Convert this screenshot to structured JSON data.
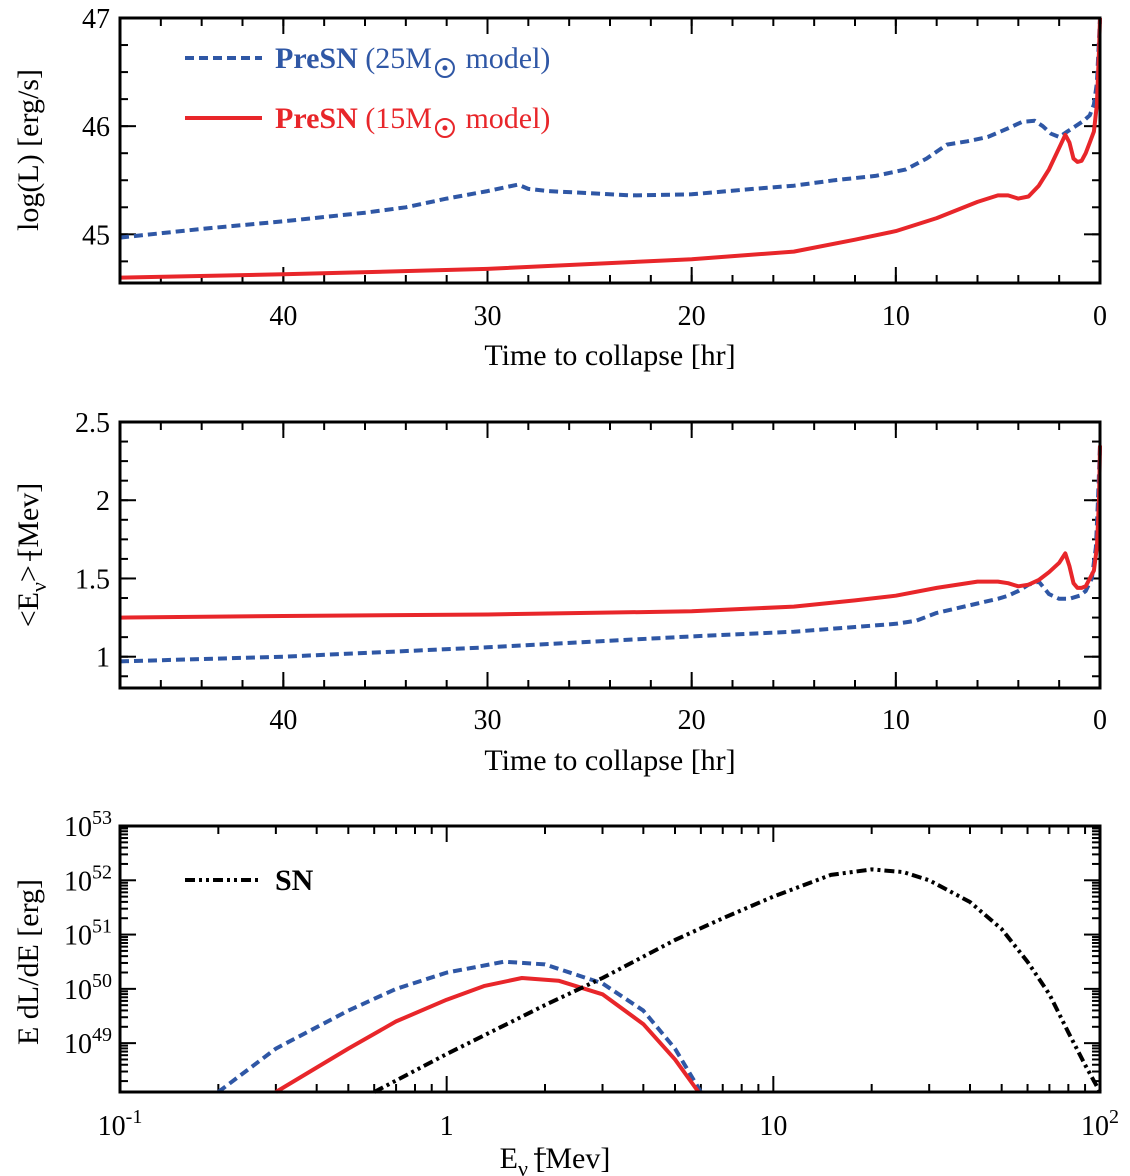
{
  "colors": {
    "blue": "#2f57a5",
    "red": "#e8262a",
    "black": "#000000"
  },
  "chart_data": [
    {
      "type": "line",
      "ylabel": "log(L) [erg/s]",
      "xlabel": "Time to collapse [hr]",
      "xlim": [
        48,
        0
      ],
      "ylim": [
        44.55,
        47
      ],
      "x_ticks": [
        40,
        30,
        20,
        10,
        0
      ],
      "y_ticks": [
        45,
        46,
        47
      ],
      "x_minor_step": 2,
      "y_minor_step": 0.25,
      "legend": {
        "placement": "top-left",
        "entries": [
          {
            "bold": "PreSN",
            "rest_a": " (25M",
            "rest_b": " model)",
            "series": 0
          },
          {
            "bold": "PreSN",
            "rest_a": " (15M",
            "rest_b": " model)",
            "series": 1
          }
        ]
      },
      "series": [
        {
          "color": "blue",
          "style": "dashed",
          "x": [
            48,
            44,
            40,
            36,
            34,
            32,
            30,
            29,
            28.5,
            28,
            27,
            25,
            23,
            20,
            17,
            15,
            13,
            11,
            9.5,
            8.5,
            7.5,
            6.5,
            5.5,
            4.5,
            3.8,
            3.2,
            2.8,
            2.4,
            2.0,
            1.6,
            1.2,
            0.8,
            0.5,
            0.3,
            0.15,
            0.05,
            0
          ],
          "y": [
            44.97,
            45.05,
            45.12,
            45.2,
            45.25,
            45.33,
            45.4,
            45.44,
            45.46,
            45.42,
            45.4,
            45.38,
            45.36,
            45.37,
            45.42,
            45.45,
            45.5,
            45.54,
            45.6,
            45.7,
            45.83,
            45.86,
            45.9,
            45.98,
            46.04,
            46.05,
            46.0,
            45.93,
            45.9,
            45.95,
            46.0,
            46.05,
            46.1,
            46.2,
            46.4,
            46.8,
            47.0
          ]
        },
        {
          "color": "red",
          "style": "solid",
          "x": [
            48,
            40,
            30,
            20,
            15,
            12,
            10,
            8,
            6,
            5,
            4.5,
            4,
            3.5,
            3,
            2.5,
            2,
            1.7,
            1.5,
            1.3,
            1.1,
            0.9,
            0.7,
            0.5,
            0.3,
            0.15,
            0.05,
            0
          ],
          "y": [
            44.6,
            44.63,
            44.68,
            44.77,
            44.84,
            44.95,
            45.03,
            45.15,
            45.3,
            45.36,
            45.36,
            45.33,
            45.35,
            45.45,
            45.6,
            45.8,
            45.92,
            45.85,
            45.7,
            45.67,
            45.68,
            45.75,
            45.85,
            45.95,
            46.2,
            46.7,
            47.0
          ]
        }
      ]
    },
    {
      "type": "line",
      "ylabel_parts": [
        "<E",
        "ν",
        "> [Mev]"
      ],
      "xlabel": "Time to collapse [hr]",
      "xlim": [
        48,
        0
      ],
      "ylim": [
        0.8,
        2.5
      ],
      "x_ticks": [
        40,
        30,
        20,
        10,
        0
      ],
      "y_ticks": [
        1,
        1.5,
        2,
        2.5
      ],
      "x_minor_step": 2,
      "y_minor_step": 0.125,
      "series": [
        {
          "color": "blue",
          "style": "dashed",
          "x": [
            48,
            40,
            30,
            20,
            15,
            12,
            10,
            9,
            8,
            7,
            6,
            5,
            4.5,
            4,
            3.5,
            3,
            2.5,
            2,
            1.5,
            1,
            0.7,
            0.4,
            0.2,
            0.1,
            0
          ],
          "y": [
            0.97,
            1.0,
            1.06,
            1.13,
            1.16,
            1.19,
            1.21,
            1.23,
            1.28,
            1.31,
            1.34,
            1.37,
            1.39,
            1.42,
            1.46,
            1.48,
            1.4,
            1.37,
            1.37,
            1.39,
            1.42,
            1.5,
            1.7,
            2.0,
            2.35
          ]
        },
        {
          "color": "red",
          "style": "solid",
          "x": [
            48,
            40,
            30,
            20,
            15,
            12,
            10,
            8,
            6,
            5,
            4.5,
            4,
            3.5,
            3,
            2.5,
            2,
            1.7,
            1.5,
            1.3,
            1.1,
            0.9,
            0.7,
            0.5,
            0.3,
            0.15,
            0.05,
            0
          ],
          "y": [
            1.25,
            1.26,
            1.27,
            1.29,
            1.32,
            1.36,
            1.39,
            1.44,
            1.48,
            1.48,
            1.47,
            1.45,
            1.46,
            1.49,
            1.54,
            1.6,
            1.66,
            1.58,
            1.47,
            1.44,
            1.44,
            1.45,
            1.5,
            1.55,
            1.7,
            2.0,
            2.35
          ]
        }
      ]
    },
    {
      "type": "line",
      "ylabel": "E dL/dE [erg]",
      "xlabel_parts": [
        "E",
        "ν",
        "  [Mev]"
      ],
      "x_scale": "log",
      "y_scale": "log",
      "xlim": [
        0.1,
        100
      ],
      "ylim_log10": [
        48.1,
        53
      ],
      "x_ticks": [
        {
          "value": 0.1,
          "base": "10",
          "exp": "-1"
        },
        {
          "value": 1,
          "label": "1"
        },
        {
          "value": 10,
          "label": "10"
        },
        {
          "value": 100,
          "base": "10",
          "exp": "2"
        }
      ],
      "y_ticks": [
        {
          "value_log10": 49,
          "base": "10",
          "exp": "49"
        },
        {
          "value_log10": 50,
          "base": "10",
          "exp": "50"
        },
        {
          "value_log10": 51,
          "base": "10",
          "exp": "51"
        },
        {
          "value_log10": 52,
          "base": "10",
          "exp": "52"
        },
        {
          "value_log10": 53,
          "base": "10",
          "exp": "53"
        }
      ],
      "legend": {
        "placement": "top-left",
        "entries": [
          {
            "bold": "SN",
            "series": 2
          }
        ]
      },
      "series": [
        {
          "color": "blue",
          "style": "dashed",
          "x": [
            0.2,
            0.3,
            0.5,
            0.7,
            1.0,
            1.5,
            2.0,
            3.0,
            4.0,
            5.0,
            6.0
          ],
          "y_log10": [
            48.1,
            48.9,
            49.6,
            50.0,
            50.3,
            50.5,
            50.45,
            50.1,
            49.6,
            48.9,
            48.1
          ]
        },
        {
          "color": "red",
          "style": "solid",
          "x": [
            0.3,
            0.5,
            0.7,
            1.0,
            1.3,
            1.7,
            2.2,
            3.0,
            4.0,
            5.0,
            5.9
          ],
          "y_log10": [
            48.1,
            48.9,
            49.4,
            49.8,
            50.05,
            50.2,
            50.15,
            49.9,
            49.35,
            48.7,
            48.1
          ]
        },
        {
          "color": "black",
          "style": "dashdot",
          "x": [
            0.6,
            1,
            2,
            3,
            5,
            7,
            10,
            15,
            20,
            25,
            30,
            40,
            50,
            60,
            70,
            80,
            90,
            100
          ],
          "y_log10": [
            48.1,
            48.8,
            49.7,
            50.2,
            50.9,
            51.3,
            51.7,
            52.1,
            52.2,
            52.15,
            52.0,
            51.6,
            51.1,
            50.5,
            49.9,
            49.2,
            48.6,
            48.1
          ]
        }
      ]
    }
  ]
}
